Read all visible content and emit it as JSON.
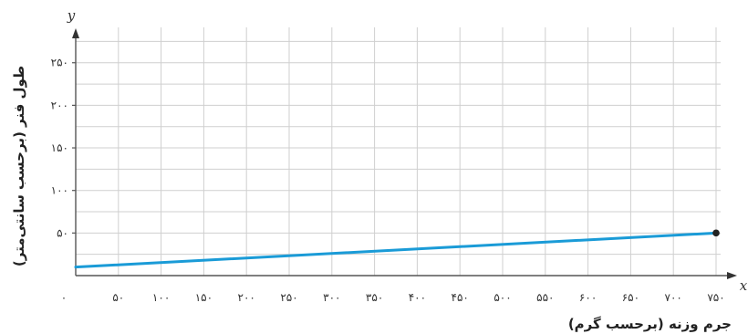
{
  "chart_data": {
    "type": "line",
    "xlabel": "جرم وزنه (برحسب گرم)",
    "ylabel": "طول فنر (برحسب سانتی‌متر)",
    "x_var": "x",
    "y_var": "y",
    "origin_label": "۰",
    "xlim": [
      0,
      750
    ],
    "ylim": [
      0,
      280
    ],
    "x_ticks": [
      {
        "value": 50,
        "label": "۵۰"
      },
      {
        "value": 100,
        "label": "۱۰۰"
      },
      {
        "value": 150,
        "label": "۱۵۰"
      },
      {
        "value": 200,
        "label": "۲۰۰"
      },
      {
        "value": 250,
        "label": "۲۵۰"
      },
      {
        "value": 300,
        "label": "۳۰۰"
      },
      {
        "value": 350,
        "label": "۳۵۰"
      },
      {
        "value": 400,
        "label": "۴۰۰"
      },
      {
        "value": 450,
        "label": "۴۵۰"
      },
      {
        "value": 500,
        "label": "۵۰۰"
      },
      {
        "value": 550,
        "label": "۵۵۰"
      },
      {
        "value": 600,
        "label": "۶۰۰"
      },
      {
        "value": 650,
        "label": "۶۵۰"
      },
      {
        "value": 700,
        "label": "۷۰۰"
      },
      {
        "value": 750,
        "label": "۷۵۰"
      }
    ],
    "y_ticks": [
      {
        "value": 50,
        "label": "۵۰"
      },
      {
        "value": 100,
        "label": "۱۰۰"
      },
      {
        "value": 150,
        "label": "۱۵۰"
      },
      {
        "value": 200,
        "label": "۲۰۰"
      },
      {
        "value": 250,
        "label": "۲۵۰"
      }
    ],
    "grid": true,
    "series": [
      {
        "points": [
          {
            "x": 0,
            "y": 10
          },
          {
            "x": 750,
            "y": 50
          }
        ],
        "color": "#1a9bd7"
      }
    ],
    "endpoint_marker": {
      "x": 750,
      "y": 50,
      "color": "#222222"
    }
  }
}
